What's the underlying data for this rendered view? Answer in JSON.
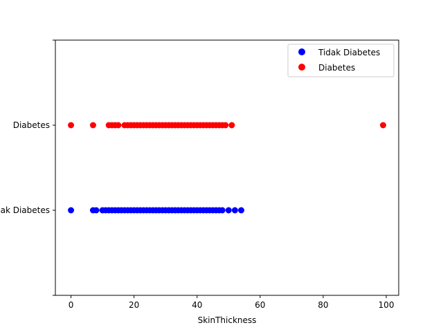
{
  "chart_data": {
    "type": "scatter",
    "title": "",
    "xlabel": "SkinThickness",
    "ylabel": "",
    "xlim": [
      -4.95,
      103.95
    ],
    "x_ticks": [
      0,
      20,
      40,
      60,
      80,
      100
    ],
    "y_categories": [
      "Tidak Diabetes",
      "Diabetes"
    ],
    "y_tick_labels": [
      "Tidak Diabetes",
      "Diabetes"
    ],
    "ylim": [
      -1,
      2
    ],
    "grid": false,
    "legend": "top-right",
    "series": [
      {
        "name": "Tidak Diabetes",
        "color": "#0000ff",
        "category": "Tidak Diabetes",
        "x": [
          0,
          7,
          8,
          10,
          11,
          12,
          13,
          14,
          15,
          16,
          17,
          18,
          19,
          20,
          21,
          22,
          23,
          24,
          25,
          26,
          27,
          28,
          29,
          30,
          31,
          32,
          33,
          34,
          35,
          36,
          37,
          38,
          39,
          40,
          41,
          42,
          43,
          44,
          45,
          46,
          47,
          48,
          50,
          52,
          54
        ]
      },
      {
        "name": "Diabetes",
        "color": "#ff0000",
        "category": "Diabetes",
        "x": [
          0,
          7,
          12,
          13,
          14,
          15,
          17,
          18,
          19,
          20,
          21,
          22,
          23,
          24,
          25,
          26,
          27,
          28,
          29,
          30,
          31,
          32,
          33,
          34,
          35,
          36,
          37,
          38,
          39,
          40,
          41,
          42,
          43,
          44,
          45,
          46,
          47,
          48,
          49,
          51,
          99
        ]
      }
    ]
  }
}
